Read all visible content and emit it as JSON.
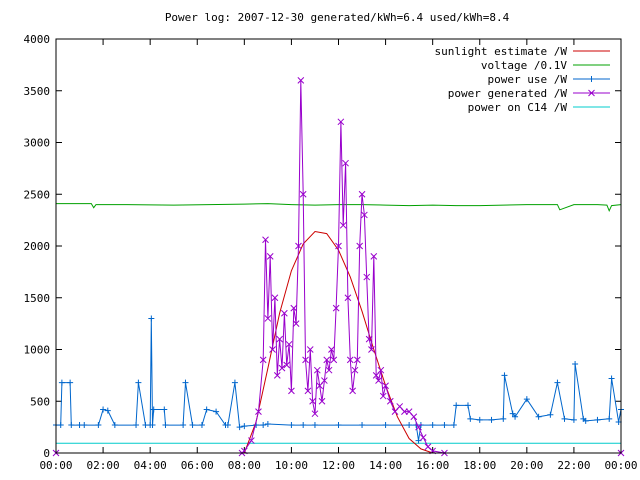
{
  "chart_data": {
    "type": "line",
    "title": "Power log: 2007-12-30 generated/kWh=6.4 used/kWh=8.4",
    "xlabel": "",
    "ylabel": "",
    "xlim": [
      "00:00",
      "24:00"
    ],
    "ylim": [
      0,
      4000
    ],
    "x_ticks": [
      "00:00",
      "02:00",
      "04:00",
      "06:00",
      "08:00",
      "10:00",
      "12:00",
      "14:00",
      "16:00",
      "18:00",
      "20:00",
      "22:00",
      "00:00"
    ],
    "y_ticks": [
      "0",
      "500",
      "1000",
      "1500",
      "2000",
      "2500",
      "3000",
      "3500",
      "4000"
    ],
    "legend_position": "top-right",
    "grid": false,
    "series": [
      {
        "name": "sunlight estimate /W",
        "color": "#cc0000",
        "marker": "none",
        "x": [
          0,
          8,
          8.5,
          9,
          9.5,
          10,
          10.5,
          11,
          11.5,
          12,
          12.5,
          13,
          13.5,
          14,
          14.5,
          15,
          15.5,
          16,
          24
        ],
        "y": [
          0,
          0,
          300,
          820,
          1350,
          1760,
          2020,
          2140,
          2120,
          1960,
          1700,
          1370,
          1000,
          650,
          350,
          140,
          40,
          0,
          0
        ]
      },
      {
        "name": "voltage /0.1V",
        "color": "#00a000",
        "marker": "none",
        "x": [
          0,
          1.5,
          1.6,
          1.7,
          3,
          5,
          6.5,
          8,
          9,
          10,
          11,
          12,
          13,
          14,
          15,
          16,
          17,
          18,
          19,
          20,
          21,
          21.3,
          21.4,
          22,
          23,
          23.4,
          23.5,
          23.6,
          24
        ],
        "y": [
          2410,
          2410,
          2370,
          2400,
          2400,
          2395,
          2400,
          2405,
          2410,
          2400,
          2395,
          2400,
          2400,
          2395,
          2390,
          2395,
          2390,
          2390,
          2395,
          2400,
          2400,
          2400,
          2350,
          2400,
          2400,
          2395,
          2340,
          2390,
          2400
        ]
      },
      {
        "name": "power use /W",
        "color": "#0066cc",
        "marker": "plus",
        "x": [
          0,
          0.2,
          0.25,
          0.6,
          0.65,
          1,
          1.2,
          1.8,
          2,
          2.2,
          2.5,
          3.4,
          3.5,
          3.8,
          4,
          4.05,
          4.1,
          4.15,
          4.6,
          4.65,
          5.4,
          5.5,
          5.8,
          6.2,
          6.4,
          6.8,
          7.2,
          7.3,
          7.6,
          7.8,
          8,
          8.5,
          8.8,
          9,
          10,
          10.5,
          11,
          12,
          13,
          14,
          15,
          15.3,
          15.4,
          15.5,
          16,
          16.5,
          16.9,
          17,
          17.5,
          17.6,
          18,
          18.5,
          19,
          19.05,
          19.4,
          19.5,
          20,
          20.5,
          21,
          21.3,
          21.6,
          22,
          22.05,
          22.4,
          22.5,
          23,
          23.5,
          23.6,
          23.9,
          24
        ],
        "y": [
          270,
          270,
          680,
          680,
          270,
          270,
          270,
          270,
          420,
          410,
          270,
          270,
          680,
          270,
          270,
          1300,
          270,
          420,
          420,
          270,
          270,
          680,
          270,
          270,
          420,
          400,
          270,
          270,
          680,
          250,
          260,
          270,
          270,
          280,
          270,
          270,
          270,
          270,
          270,
          270,
          270,
          270,
          120,
          270,
          270,
          270,
          270,
          460,
          460,
          330,
          320,
          320,
          330,
          750,
          380,
          350,
          520,
          350,
          370,
          680,
          330,
          320,
          860,
          330,
          310,
          320,
          330,
          720,
          300,
          420
        ]
      },
      {
        "name": "power generated /W",
        "color": "#9900cc",
        "marker": "cross",
        "x": [
          0,
          7.9,
          8,
          8.3,
          8.6,
          8.8,
          8.9,
          9,
          9.1,
          9.2,
          9.3,
          9.4,
          9.5,
          9.6,
          9.7,
          9.8,
          9.9,
          10,
          10.1,
          10.2,
          10.3,
          10.4,
          10.5,
          10.6,
          10.7,
          10.8,
          10.9,
          11,
          11.1,
          11.2,
          11.3,
          11.4,
          11.5,
          11.6,
          11.7,
          11.8,
          11.9,
          12,
          12.1,
          12.2,
          12.3,
          12.4,
          12.5,
          12.6,
          12.7,
          12.8,
          12.9,
          13,
          13.1,
          13.2,
          13.3,
          13.4,
          13.5,
          13.6,
          13.7,
          13.8,
          13.9,
          14,
          14.2,
          14.4,
          14.6,
          14.8,
          15,
          15.2,
          15.4,
          15.6,
          15.8,
          16,
          16.5,
          24
        ],
        "y": [
          0,
          0,
          20,
          120,
          400,
          900,
          2060,
          1300,
          1900,
          1000,
          1500,
          750,
          1100,
          820,
          1350,
          850,
          1050,
          600,
          1400,
          1250,
          2000,
          3600,
          2500,
          900,
          600,
          1000,
          500,
          380,
          800,
          650,
          500,
          700,
          900,
          800,
          1000,
          900,
          1400,
          2000,
          3200,
          2200,
          2800,
          1500,
          900,
          600,
          800,
          900,
          2000,
          2500,
          2300,
          1700,
          1100,
          1000,
          1900,
          750,
          700,
          800,
          550,
          650,
          500,
          400,
          450,
          400,
          400,
          350,
          250,
          150,
          60,
          20,
          0,
          0
        ]
      },
      {
        "name": "power on C14 /W",
        "color": "#00cccc",
        "marker": "none",
        "x": [
          0,
          24
        ],
        "y": [
          95,
          95
        ]
      }
    ]
  }
}
